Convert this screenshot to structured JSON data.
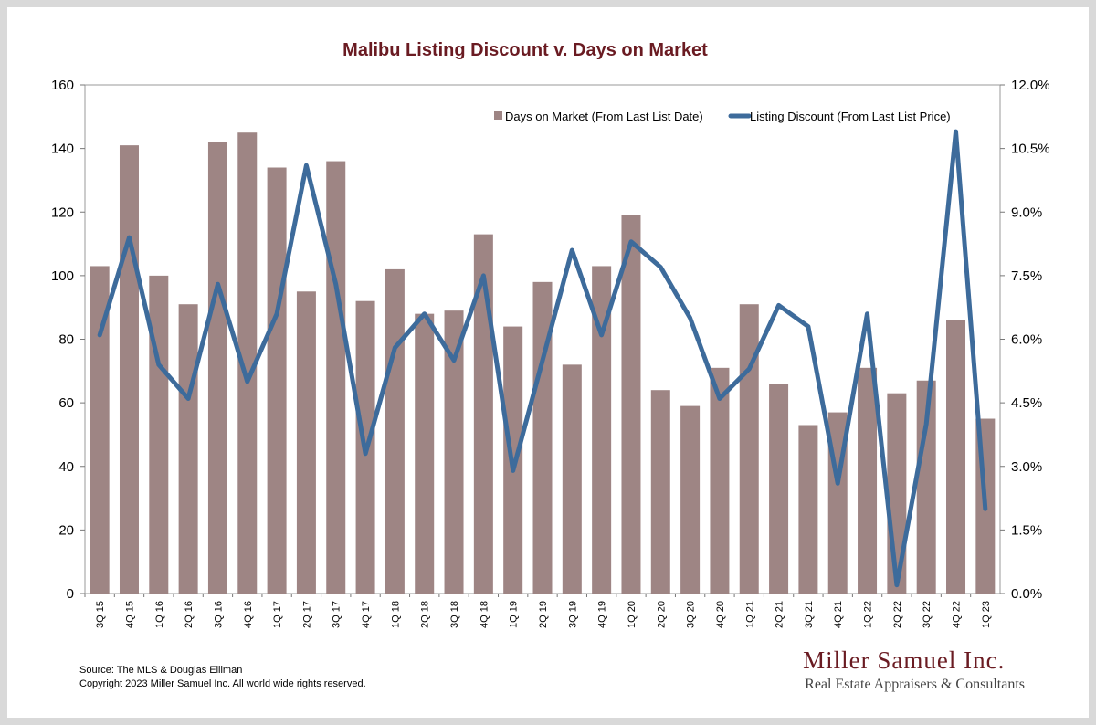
{
  "chart_data": {
    "type": "bar+line",
    "title": "Malibu Listing Discount v. Days on Market",
    "categories": [
      "3Q 15",
      "4Q 15",
      "1Q 16",
      "2Q 16",
      "3Q 16",
      "4Q 16",
      "1Q 17",
      "2Q 17",
      "3Q 17",
      "4Q 17",
      "1Q 18",
      "2Q 18",
      "3Q 18",
      "4Q 18",
      "1Q 19",
      "2Q 19",
      "3Q 19",
      "4Q 19",
      "1Q 20",
      "2Q 20",
      "3Q 20",
      "4Q 20",
      "1Q 21",
      "2Q 21",
      "3Q 21",
      "4Q 21",
      "1Q 22",
      "2Q 22",
      "3Q 22",
      "4Q 22",
      "1Q 23"
    ],
    "series": [
      {
        "name": "Days on Market (From Last List Date)",
        "type": "bar",
        "axis": "left",
        "color": "#9e8584",
        "values": [
          103,
          141,
          100,
          91,
          142,
          145,
          134,
          95,
          136,
          92,
          102,
          88,
          89,
          113,
          84,
          98,
          72,
          103,
          119,
          64,
          59,
          71,
          91,
          66,
          53,
          57,
          71,
          63,
          67,
          86,
          55
        ]
      },
      {
        "name": "Listing Discount (From Last List Price)",
        "type": "line",
        "axis": "right",
        "color": "#3d6b9b",
        "values": [
          6.1,
          8.4,
          5.4,
          4.6,
          7.3,
          5.0,
          6.6,
          10.1,
          7.3,
          3.3,
          5.8,
          6.6,
          5.5,
          7.5,
          2.9,
          5.5,
          8.1,
          6.1,
          8.3,
          7.7,
          6.5,
          4.6,
          5.3,
          6.8,
          6.3,
          2.6,
          6.6,
          0.2,
          4.0,
          10.9,
          2.0
        ]
      }
    ],
    "y_left": {
      "min": 0,
      "max": 160,
      "ticks": [
        "0",
        "20",
        "40",
        "60",
        "80",
        "100",
        "120",
        "140",
        "160"
      ]
    },
    "y_right": {
      "min": 0,
      "max": 12,
      "ticks": [
        "0.0%",
        "1.5%",
        "3.0%",
        "4.5%",
        "6.0%",
        "7.5%",
        "9.0%",
        "10.5%",
        "12.0%"
      ]
    },
    "grid": false,
    "legend_position": "top-right"
  },
  "footer": {
    "source": "Source: The MLS & Douglas Elliman",
    "copyright": "Copyright 2023 Miller Samuel Inc.  All world wide rights reserved."
  },
  "brand": {
    "name": "Miller Samuel Inc.",
    "tagline": "Real Estate Appraisers & Consultants"
  }
}
